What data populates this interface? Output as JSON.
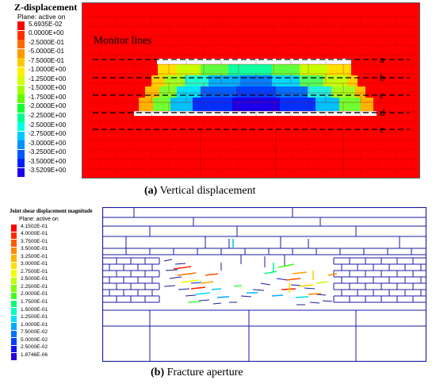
{
  "panel_a": {
    "legend_title": "Z-displacement",
    "legend_subtitle": "Plane: active on",
    "legend_values": [
      "5.6935E-02",
      "0.0000E+00",
      "-2.5000E-01",
      "-5.0000E-01",
      "-7.5000E-01",
      "-1.0000E+00",
      "-1.2500E+00",
      "-1.5000E+00",
      "-1.7500E+00",
      "-2.0000E+00",
      "-2.2500E+00",
      "-2.5000E+00",
      "-2.7500E+00",
      "-3.0000E+00",
      "-3.2500E+00",
      "-3.5000E+00",
      "-3.5209E+00"
    ],
    "legend_colors": [
      "#ff0000",
      "#ff3000",
      "#ff6a00",
      "#ff9a00",
      "#ffc800",
      "#fff000",
      "#d2ff00",
      "#a0ff00",
      "#60ff00",
      "#10ff30",
      "#00ff90",
      "#00ffe0",
      "#00c8ff",
      "#0090ff",
      "#0058ff",
      "#0020ff",
      "#1a00e8"
    ],
    "monitor_label": "Monitor lines",
    "line_labels": [
      "a",
      "b",
      "c",
      "d",
      "e"
    ],
    "caption_letter": "(a)",
    "caption_text": " Vertical displacement"
  },
  "panel_b": {
    "legend_title": "Joint shear displacement magnitude",
    "legend_subtitle": "Plane: active on",
    "legend_values": [
      "4.1502E-01",
      "4.0000E-01",
      "3.7500E-01",
      "3.5000E-01",
      "3.2500E-01",
      "3.0000E-01",
      "2.7500E-01",
      "2.5000E-01",
      "2.2500E-01",
      "2.0000E-01",
      "1.7500E-01",
      "1.5000E-01",
      "1.2500E-01",
      "1.0000E-01",
      "7.5000E-02",
      "5.0000E-02",
      "2.5000E-02",
      "1.8746E-06"
    ],
    "legend_colors": [
      "#ff0000",
      "#ff2a00",
      "#ff5a00",
      "#ff8800",
      "#ffb400",
      "#ffe000",
      "#f0ff00",
      "#c0ff00",
      "#80ff00",
      "#40ff20",
      "#00ff70",
      "#00ffc0",
      "#00e0ff",
      "#00a8ff",
      "#0070ff",
      "#0040ff",
      "#1010ff",
      "#2800d8"
    ],
    "caption_letter": "(b)",
    "caption_text": " Fracture aperture"
  }
}
